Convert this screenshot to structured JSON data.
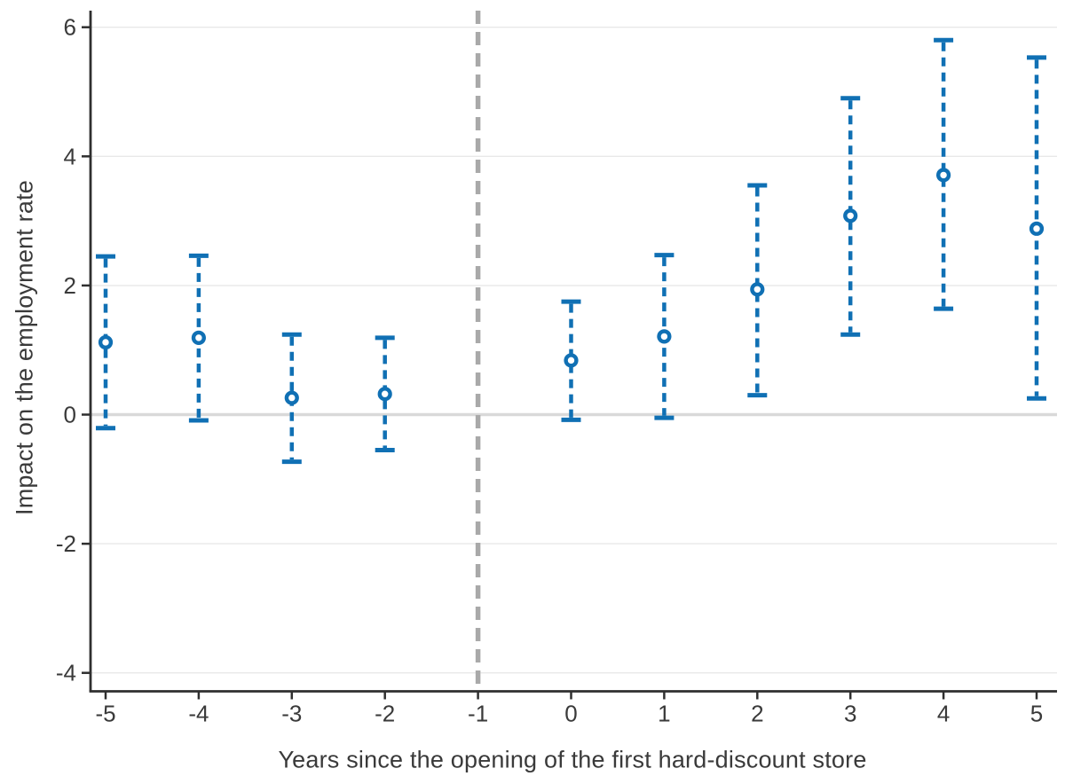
{
  "chart_data": {
    "type": "scatter",
    "subtype": "event-study-coefficient-plot-with-95ci",
    "title": "",
    "xlabel": "Years since the opening of the first hard-discount store",
    "ylabel": "Impact on the employment rate",
    "x_ticks": [
      -5,
      -4,
      -3,
      -2,
      -1,
      0,
      1,
      2,
      3,
      4,
      5
    ],
    "y_ticks": [
      -4,
      -2,
      0,
      2,
      4,
      6
    ],
    "xlim": [
      -5.17,
      5.22
    ],
    "ylim": [
      -4.3,
      6.25
    ],
    "grid": "horizontal-gridlines-only",
    "legend": "none",
    "zero_line_y": 0,
    "reference_line_x": -1,
    "reference_line_style": "dashed-vertical",
    "series": [
      {
        "name": "point-estimate-with-95ci",
        "marker": "open-circle",
        "ci_style": "dashed-with-caps",
        "points": [
          {
            "x": -5,
            "y": 1.12,
            "ci_low": -0.21,
            "ci_high": 2.45
          },
          {
            "x": -4,
            "y": 1.19,
            "ci_low": -0.09,
            "ci_high": 2.46
          },
          {
            "x": -3,
            "y": 0.26,
            "ci_low": -0.73,
            "ci_high": 1.24
          },
          {
            "x": -2,
            "y": 0.32,
            "ci_low": -0.55,
            "ci_high": 1.19
          },
          {
            "x": 0,
            "y": 0.84,
            "ci_low": -0.08,
            "ci_high": 1.75
          },
          {
            "x": 1,
            "y": 1.21,
            "ci_low": -0.05,
            "ci_high": 2.47
          },
          {
            "x": 2,
            "y": 1.94,
            "ci_low": 0.3,
            "ci_high": 3.55
          },
          {
            "x": 3,
            "y": 3.08,
            "ci_low": 1.24,
            "ci_high": 4.9
          },
          {
            "x": 4,
            "y": 3.71,
            "ci_low": 1.64,
            "ci_high": 5.8
          },
          {
            "x": 5,
            "y": 2.88,
            "ci_low": 0.25,
            "ci_high": 5.53
          }
        ]
      }
    ],
    "colors": {
      "point": "#1070b4",
      "reference_line": "#a9a9a9",
      "zero_line": "#d9d9d9",
      "gridline": "#e8e8e8",
      "axis": "#2f2f2f",
      "text": "#3a3a3a",
      "background": "#ffffff"
    }
  }
}
